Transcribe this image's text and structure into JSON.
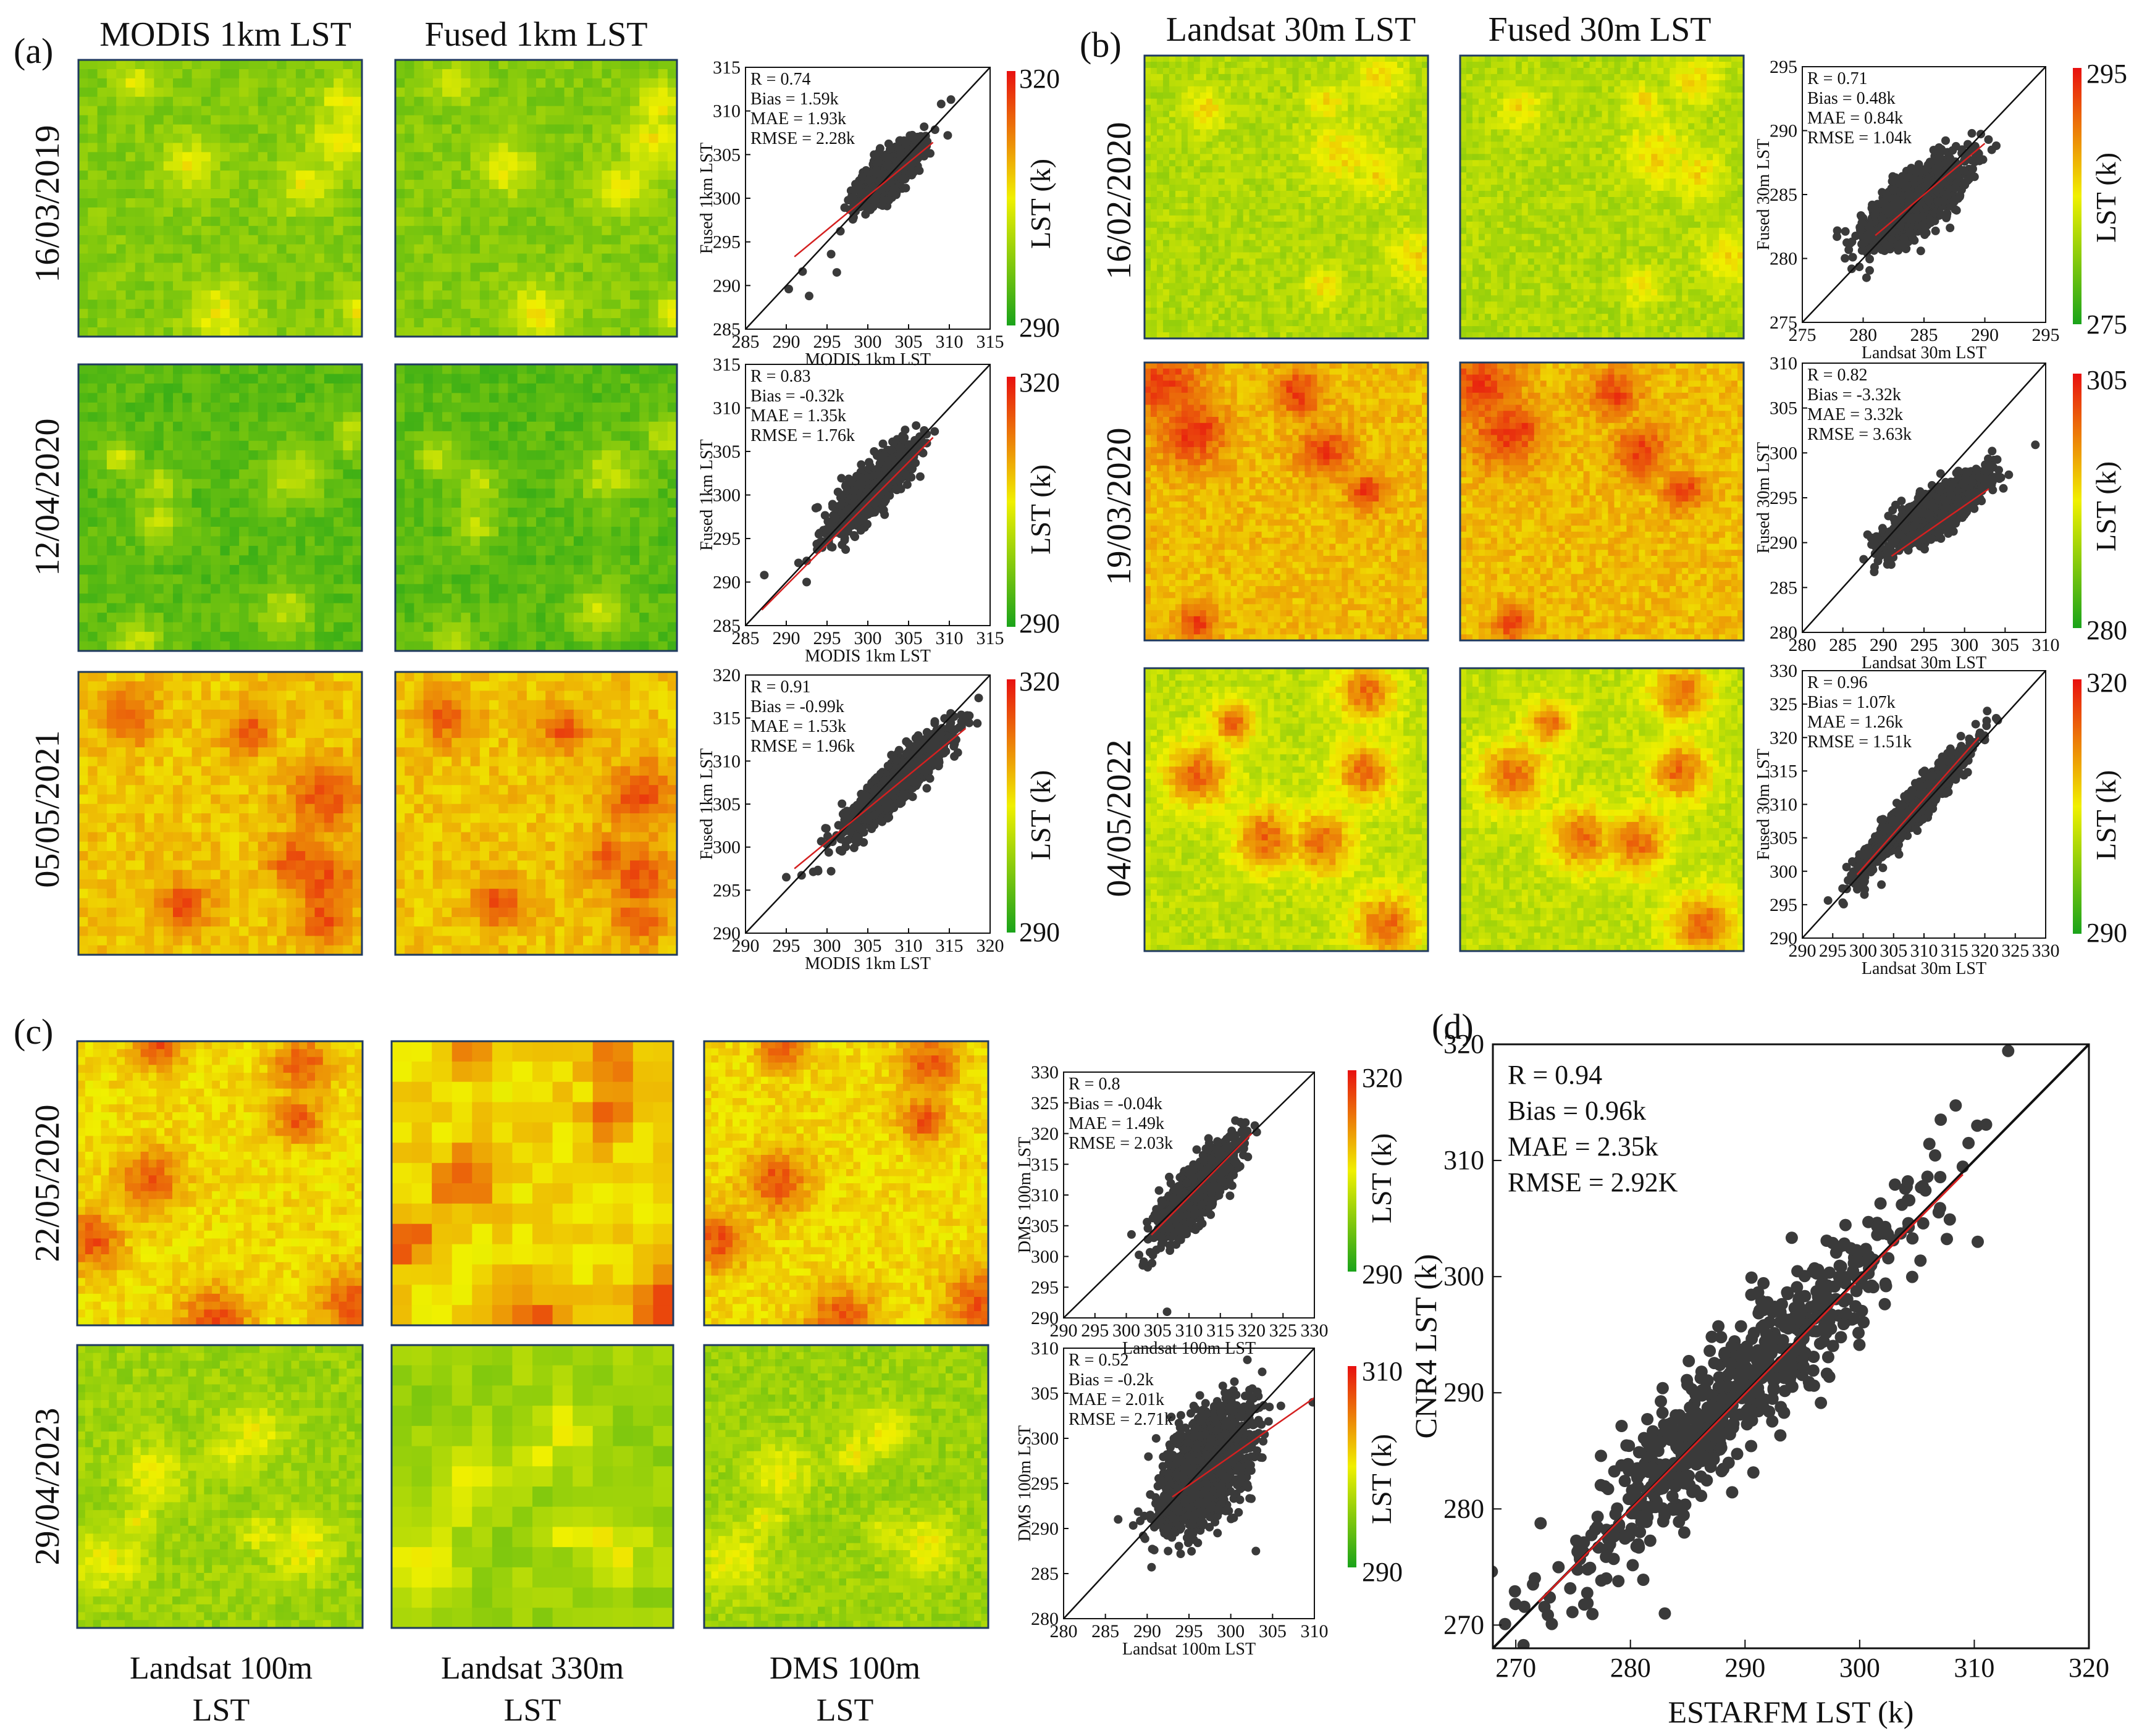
{
  "figure": {
    "panel_labels": [
      "(a)",
      "(b)",
      "(c)",
      "(d)"
    ],
    "colors": {
      "scatter_points": "#3a3a3a",
      "fit_line": "#d42020",
      "one_to_one_line": "#111111",
      "frame": "#1f3a5f",
      "colormap_low": "#1aa31a",
      "colormap_mid": "#f0f000",
      "colormap_high": "#e81010"
    },
    "a": {
      "col_titles": [
        "MODIS 1km LST",
        "Fused 1km LST"
      ],
      "rows": [
        {
          "date": "16/03/2019",
          "cbar_min": "290",
          "cbar_max": "320",
          "cbar_label": "LST (k)",
          "mean_level": 0.25,
          "hotspot_level": 0.5
        },
        {
          "date": "12/04/2020",
          "cbar_min": "290",
          "cbar_max": "320",
          "cbar_label": "LST (k)",
          "mean_level": 0.15,
          "hotspot_level": 0.4
        },
        {
          "date": "05/05/2021",
          "cbar_min": "290",
          "cbar_max": "320",
          "cbar_label": "LST (k)",
          "mean_level": 0.6,
          "hotspot_level": 0.85
        }
      ]
    },
    "b": {
      "col_titles": [
        "Landsat 30m LST",
        "Fused 30m LST"
      ],
      "rows": [
        {
          "date": "16/02/2020",
          "cbar_min": "275",
          "cbar_max": "295",
          "cbar_label": "LST (k)",
          "mean_level": 0.35,
          "hotspot_level": 0.55
        },
        {
          "date": "19/03/2020",
          "cbar_min": "280",
          "cbar_max": "305",
          "cbar_label": "LST (k)",
          "mean_level": 0.62,
          "hotspot_level": 0.9
        },
        {
          "date": "04/05/2022",
          "cbar_min": "290",
          "cbar_max": "320",
          "cbar_label": "LST (k)",
          "mean_level": 0.38,
          "hotspot_level": 0.8
        }
      ]
    },
    "c": {
      "col_titles": [
        [
          "Landsat 100m",
          "LST"
        ],
        [
          "Landsat 330m",
          "LST"
        ],
        [
          "DMS 100m",
          "LST"
        ]
      ],
      "rows": [
        {
          "date": "22/05/2020",
          "cbar_min": "290",
          "cbar_max": "320",
          "cbar_label": "LST (k)",
          "mean_level": 0.55,
          "hotspot_level": 0.85
        },
        {
          "date": "29/04/2023",
          "cbar_min": "290",
          "cbar_max": "310",
          "cbar_label": "LST (k)",
          "mean_level": 0.3,
          "hotspot_level": 0.5
        }
      ]
    }
  },
  "chart_data": [
    {
      "id": "a1",
      "type": "scatter",
      "xlabel": "MODIS 1km LST",
      "ylabel": "Fused 1km LST",
      "xlim": [
        285,
        315
      ],
      "ylim": [
        285,
        315
      ],
      "ticks": [
        285,
        290,
        295,
        300,
        305,
        310,
        315
      ],
      "stats": [
        "R = 0.74",
        "Bias = 1.59k",
        "MAE = 1.93k",
        "RMSE = 2.28k"
      ],
      "x_center": 302.5,
      "y_center": 302.8,
      "x_spread": 1.8,
      "y_spread": 1.8,
      "rho": 0.74,
      "fit": [
        [
          291,
          293.3
        ],
        [
          308,
          306.4
        ]
      ],
      "outliers": [
        [
          290.3,
          289.6
        ],
        [
          292.0,
          291.6
        ],
        [
          292.8,
          288.8
        ],
        [
          295.5,
          293.6
        ],
        [
          296.2,
          291.5
        ],
        [
          310.2,
          311.3
        ],
        [
          309.0,
          310.8
        ],
        [
          309.8,
          307.2
        ]
      ]
    },
    {
      "id": "a2",
      "type": "scatter",
      "xlabel": "MODIS 1km LST",
      "ylabel": "Fused 1km LST",
      "xlim": [
        285,
        315
      ],
      "ylim": [
        285,
        315
      ],
      "ticks": [
        285,
        290,
        295,
        300,
        305,
        310,
        315
      ],
      "stats": [
        "R = 0.83",
        "Bias = -0.32k",
        "MAE = 1.35k",
        "RMSE = 1.76k"
      ],
      "x_center": 300.3,
      "y_center": 300.5,
      "x_spread": 2.4,
      "y_spread": 2.4,
      "rho": 0.83,
      "fit": [
        [
          287,
          286.8
        ],
        [
          308,
          306.6
        ]
      ],
      "outliers": [
        [
          287.3,
          290.8
        ],
        [
          291.5,
          292.2
        ],
        [
          292.5,
          290.0
        ],
        [
          308.2,
          307.3
        ],
        [
          294.0,
          295.5
        ]
      ]
    },
    {
      "id": "a3",
      "type": "scatter",
      "xlabel": "MODIS 1km LST",
      "ylabel": "Fused 1km LST",
      "xlim": [
        290,
        320
      ],
      "ylim": [
        290,
        320
      ],
      "ticks": [
        290,
        295,
        300,
        305,
        310,
        315,
        320
      ],
      "stats": [
        "R = 0.91",
        "Bias = -0.99k",
        "MAE = 1.53k",
        "RMSE = 1.96k"
      ],
      "x_center": 308.5,
      "y_center": 307.5,
      "x_spread": 3.2,
      "y_spread": 3.0,
      "rho": 0.91,
      "fit": [
        [
          296,
          297.5
        ],
        [
          317,
          313.8
        ]
      ],
      "outliers": [
        [
          295.0,
          296.5
        ],
        [
          300.5,
          297.2
        ],
        [
          317.2,
          315.3
        ],
        [
          316.5,
          314.0
        ]
      ]
    },
    {
      "id": "b1",
      "type": "scatter",
      "xlabel": "Landsat 30m LST",
      "ylabel": "Fused 30m LST",
      "xlim": [
        275,
        295
      ],
      "ylim": [
        275,
        295
      ],
      "ticks": [
        275,
        280,
        285,
        290,
        295
      ],
      "stats": [
        "R = 0.71",
        "Bias = 0.48k",
        "MAE = 0.84k",
        "RMSE = 1.04k"
      ],
      "x_center": 284.3,
      "y_center": 284.4,
      "x_spread": 2.0,
      "y_spread": 1.6,
      "rho": 0.71,
      "fit": [
        [
          281,
          281.8
        ],
        [
          290,
          289.0
        ]
      ],
      "outliers": [
        [
          280.3,
          281.5
        ],
        [
          290.3,
          289.3
        ],
        [
          289.5,
          288.2
        ]
      ]
    },
    {
      "id": "b2",
      "type": "scatter",
      "xlabel": "Landsat 30m LST",
      "ylabel": "Fused 30m LST",
      "xlim": [
        280,
        310
      ],
      "ylim": [
        280,
        310
      ],
      "ticks": [
        280,
        285,
        290,
        295,
        300,
        305,
        310
      ],
      "stats": [
        "R = 0.82",
        "Bias = -3.32k",
        "MAE = 3.32k",
        "RMSE = 3.63k"
      ],
      "x_center": 296.5,
      "y_center": 293.5,
      "x_spread": 3.0,
      "y_spread": 2.0,
      "rho": 0.82,
      "fit": [
        [
          291,
          288.5
        ],
        [
          303,
          296.0
        ]
      ],
      "outliers": [
        [
          290.5,
          288.6
        ],
        [
          303.4,
          300.2
        ]
      ]
    },
    {
      "id": "b3",
      "type": "scatter",
      "xlabel": "Landsat 30m LST",
      "ylabel": "Fused 30m LST",
      "xlim": [
        290,
        330
      ],
      "ylim": [
        290,
        330
      ],
      "ticks": [
        290,
        295,
        300,
        305,
        310,
        315,
        320,
        325,
        330
      ],
      "stats": [
        "R = 0.96",
        "Bias = 1.07k",
        "MAE = 1.26k",
        "RMSE = 1.51k"
      ],
      "x_center": 308.0,
      "y_center": 309.0,
      "x_spread": 4.2,
      "y_spread": 4.4,
      "rho": 0.96,
      "fit": [
        [
          299,
          299.5
        ],
        [
          319,
          320.0
        ]
      ],
      "outliers": [
        [
          300.2,
          296.5
        ],
        [
          320.3,
          322.5
        ],
        [
          318.5,
          322.0
        ],
        [
          303.0,
          298.0
        ]
      ]
    },
    {
      "id": "c1",
      "type": "scatter",
      "xlabel": "Landsat 100m LST",
      "ylabel": "DMS 100m LST",
      "xlim": [
        290,
        330
      ],
      "ylim": [
        290,
        330
      ],
      "ticks": [
        290,
        295,
        300,
        305,
        310,
        315,
        320,
        325,
        330
      ],
      "stats": [
        "R = 0.8",
        "Bias = -0.04k",
        "MAE = 1.49k",
        "RMSE = 2.03k"
      ],
      "x_center": 311.0,
      "y_center": 310.5,
      "x_spread": 3.0,
      "y_spread": 3.6,
      "rho": 0.8,
      "fit": [
        [
          304,
          303.5
        ],
        [
          320,
          320.0
        ]
      ],
      "outliers": [
        [
          306.5,
          291.0
        ],
        [
          319.0,
          321.8
        ],
        [
          320.5,
          321.3
        ]
      ]
    },
    {
      "id": "c2",
      "type": "scatter",
      "xlabel": "Landsat 100m LST",
      "ylabel": "DMS 100m LST",
      "xlim": [
        280,
        310
      ],
      "ylim": [
        280,
        310
      ],
      "ticks": [
        280,
        285,
        290,
        295,
        300,
        305,
        310
      ],
      "stats": [
        "R = 0.52",
        "Bias = -0.2k",
        "MAE = 2.01k",
        "RMSE = 2.71k"
      ],
      "x_center": 297.0,
      "y_center": 296.8,
      "x_spread": 2.6,
      "y_spread": 3.4,
      "rho": 0.52,
      "fit": [
        [
          293,
          293.5
        ],
        [
          310,
          304.5
        ]
      ],
      "outliers": [
        [
          292.5,
          287.5
        ],
        [
          303.0,
          287.5
        ],
        [
          309.8,
          304.0
        ]
      ]
    },
    {
      "id": "d",
      "type": "scatter",
      "xlabel": "ESTARFM LST (k)",
      "ylabel": "CNR4 LST (k)",
      "xlim": [
        268,
        320
      ],
      "ylim": [
        268,
        320
      ],
      "ticks": [
        270,
        280,
        290,
        300,
        310,
        320
      ],
      "stats": [
        "R = 0.94",
        "Bias = 0.96k",
        "MAE = 2.35k",
        "RMSE = 2.92K"
      ],
      "x_center": 290.0,
      "y_center": 290.5,
      "x_spread": 8.0,
      "y_spread": 8.5,
      "rho": 0.94,
      "fit": [
        [
          272,
          272.0
        ],
        [
          309,
          308.8
        ]
      ],
      "outliers": [
        [
          283.0,
          271.0
        ],
        [
          309.5,
          311.5
        ],
        [
          310.3,
          303.0
        ],
        [
          304.2,
          308.2
        ],
        [
          271.5,
          273.5
        ]
      ]
    }
  ]
}
